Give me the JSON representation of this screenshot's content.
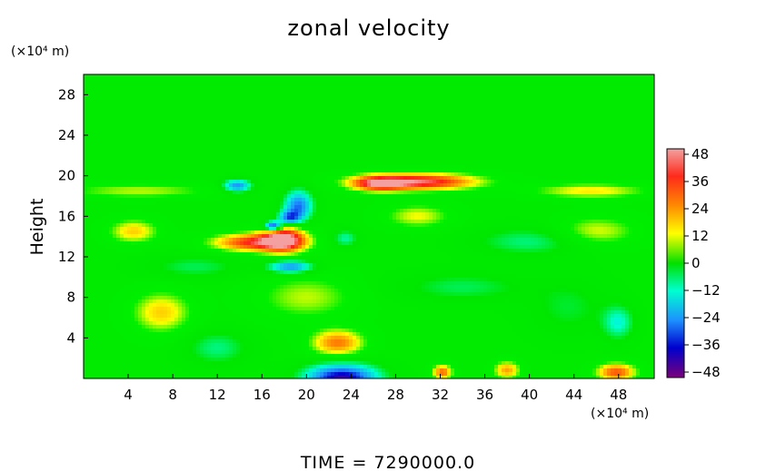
{
  "chart_data": {
    "type": "heatmap",
    "title": "zonal velocity",
    "xlabel": "",
    "ylabel": "Height",
    "x_unit": "(×10⁴ m)",
    "y_unit": "(×10⁴ m)",
    "footer": "TIME  =  7290000.0",
    "xlim": [
      0,
      51.2
    ],
    "ylim": [
      0,
      30
    ],
    "xticks": [
      4,
      8,
      12,
      16,
      20,
      24,
      28,
      32,
      36,
      40,
      44,
      48
    ],
    "xtick_labels": [
      "4",
      "8",
      "12",
      "16",
      "20",
      "24",
      "28",
      "32",
      "36",
      "40",
      "44",
      "48"
    ],
    "yticks": [
      4,
      8,
      12,
      16,
      20,
      24,
      28
    ],
    "ytick_labels": [
      "4",
      "8",
      "12",
      "16",
      "20",
      "24",
      "28"
    ],
    "colorbar": {
      "ticks": [
        48,
        36,
        24,
        12,
        0,
        -12,
        -24,
        -36,
        -48
      ],
      "tick_labels": [
        "48",
        "36",
        "24",
        "12",
        "0",
        "−12",
        "−24",
        "−36",
        "−48"
      ],
      "range": [
        -48,
        48
      ],
      "levels": 32,
      "palette": [
        "#f08080",
        "#ff0000",
        "#ff8c00",
        "#ffd700",
        "#ffff00",
        "#00ff00",
        "#00ffff",
        "#1e90ff",
        "#0000cd",
        "#800080"
      ]
    },
    "background_value": 2,
    "features": [
      {
        "x": 30.0,
        "y": 19.4,
        "value": 42,
        "sx": 3.6,
        "sy": 0.55
      },
      {
        "x": 26.5,
        "y": 19.2,
        "value": 30,
        "sx": 1.6,
        "sy": 0.5
      },
      {
        "x": 15.5,
        "y": 13.4,
        "value": 36,
        "sx": 2.6,
        "sy": 0.6
      },
      {
        "x": 18.0,
        "y": 13.8,
        "value": 42,
        "sx": 1.3,
        "sy": 0.9
      },
      {
        "x": 13.8,
        "y": 19.0,
        "value": -30,
        "sx": 0.9,
        "sy": 0.45
      },
      {
        "x": 19.3,
        "y": 17.0,
        "value": -32,
        "sx": 0.9,
        "sy": 1.1
      },
      {
        "x": 18.4,
        "y": 15.8,
        "value": -28,
        "sx": 0.7,
        "sy": 0.5
      },
      {
        "x": 17.0,
        "y": 15.0,
        "value": -44,
        "sx": 0.55,
        "sy": 0.35
      },
      {
        "x": 18.6,
        "y": 11.0,
        "value": -30,
        "sx": 1.4,
        "sy": 0.45
      },
      {
        "x": 23.5,
        "y": 13.8,
        "value": -14,
        "sx": 0.8,
        "sy": 0.6
      },
      {
        "x": 23.2,
        "y": 0.0,
        "value": -44,
        "sx": 2.3,
        "sy": 1.0
      },
      {
        "x": 22.8,
        "y": 3.5,
        "value": 26,
        "sx": 1.6,
        "sy": 0.9
      },
      {
        "x": 47.8,
        "y": 0.6,
        "value": 30,
        "sx": 1.2,
        "sy": 0.6
      },
      {
        "x": 32.2,
        "y": 0.6,
        "value": 28,
        "sx": 0.6,
        "sy": 0.5
      },
      {
        "x": 38.0,
        "y": 0.8,
        "value": 22,
        "sx": 0.8,
        "sy": 0.6
      },
      {
        "x": 7.0,
        "y": 6.5,
        "value": 18,
        "sx": 1.8,
        "sy": 1.4
      },
      {
        "x": 48.0,
        "y": 5.5,
        "value": -16,
        "sx": 1.0,
        "sy": 1.2
      },
      {
        "x": 12.0,
        "y": 3.0,
        "value": -12,
        "sx": 2.0,
        "sy": 1.2
      },
      {
        "x": 43.5,
        "y": 7.0,
        "value": -8,
        "sx": 2.5,
        "sy": 2.0
      },
      {
        "x": 4.5,
        "y": 14.5,
        "value": 18,
        "sx": 1.5,
        "sy": 0.8
      },
      {
        "x": 46.0,
        "y": 14.5,
        "value": 14,
        "sx": 2.5,
        "sy": 1.0
      },
      {
        "x": 45.5,
        "y": 18.5,
        "value": 16,
        "sx": 3.5,
        "sy": 0.5
      },
      {
        "x": 5.0,
        "y": 18.5,
        "value": 12,
        "sx": 4.5,
        "sy": 0.5
      },
      {
        "x": 30.0,
        "y": 16.0,
        "value": 14,
        "sx": 2.0,
        "sy": 0.8
      },
      {
        "x": 40.0,
        "y": 13.5,
        "value": -12,
        "sx": 3.5,
        "sy": 1.0
      },
      {
        "x": 10.0,
        "y": 11.0,
        "value": -10,
        "sx": 3.0,
        "sy": 0.8
      },
      {
        "x": 34.0,
        "y": 9.0,
        "value": -10,
        "sx": 4.0,
        "sy": 1.0
      },
      {
        "x": 20.0,
        "y": 8.0,
        "value": 12,
        "sx": 3.0,
        "sy": 1.5
      }
    ]
  }
}
